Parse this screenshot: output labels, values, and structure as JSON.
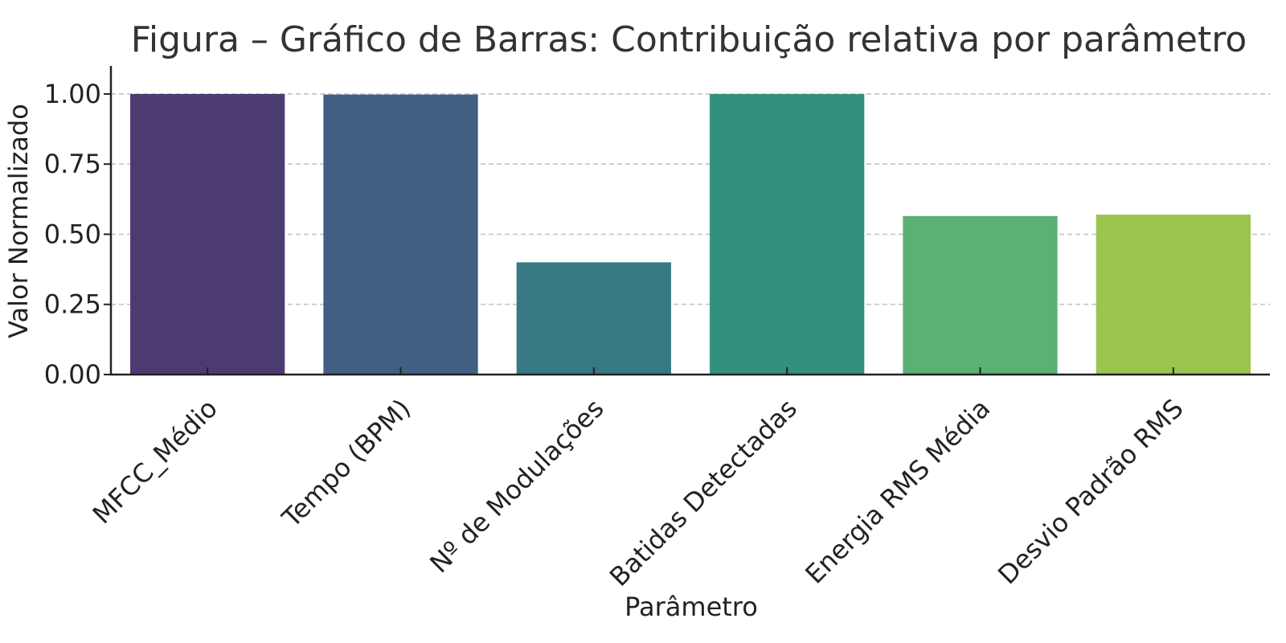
{
  "chart_data": {
    "type": "bar",
    "title": "Figura – Gráfico de Barras: Contribuição relativa por parâmetro",
    "xlabel": "Parâmetro",
    "ylabel": "Valor Normalizado",
    "categories": [
      "MFCC_Médio",
      "Tempo (BPM)",
      "Nº de Modulações",
      "Batidas Detectadas",
      "Energia RMS Média",
      "Desvio Padrão RMS"
    ],
    "values": [
      1.0,
      0.998,
      0.4,
      1.0,
      0.565,
      0.57
    ],
    "colors": [
      "#4b3b72",
      "#415f82",
      "#377882",
      "#34907e",
      "#5bb073",
      "#9ac54f"
    ],
    "ylim": [
      0,
      1.1
    ],
    "yticks": [
      0.0,
      0.25,
      0.5,
      0.75,
      1.0
    ],
    "ytick_labels": [
      "0.00",
      "0.25",
      "0.50",
      "0.75",
      "1.00"
    ],
    "grid": true,
    "legend": "none"
  }
}
